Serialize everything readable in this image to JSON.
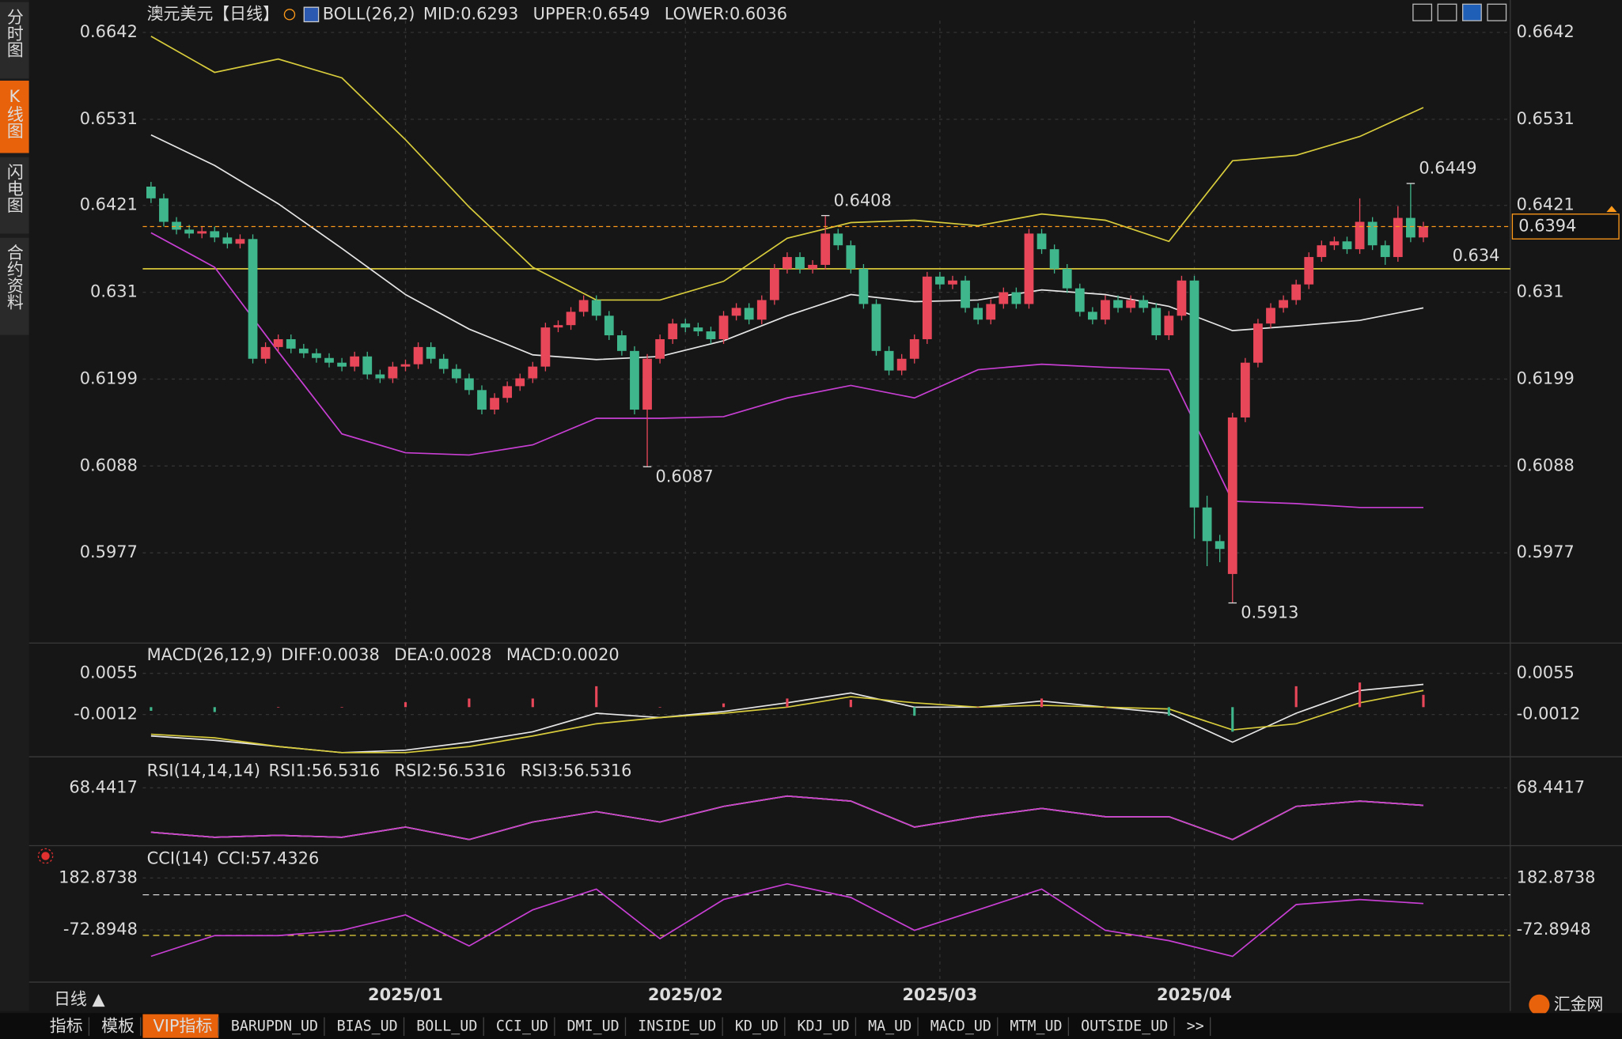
{
  "chart_data": [
    {
      "type": "candlestick",
      "title": "澳元美元",
      "period": "【日线】",
      "indicator": "BOLL(26,2)",
      "up_color": "#e8475a",
      "down_color": "#3fb68b",
      "grid": true,
      "ylim": [
        0.5871,
        0.6657
      ],
      "yticks": [
        0.6642,
        0.6531,
        0.6421,
        0.631,
        0.6199,
        0.6088,
        0.5977
      ],
      "xticks": [
        {
          "value": 20,
          "label": "2025/01"
        },
        {
          "value": 42,
          "label": "2025/02"
        },
        {
          "value": 62,
          "label": "2025/03"
        },
        {
          "value": 82,
          "label": "2025/04"
        }
      ],
      "hline": 0.634,
      "hline_color": "#e6d43c",
      "last_color": "#ff9a1a",
      "ohlc": [
        [
          0.6445,
          0.6451,
          0.6424,
          0.643
        ],
        [
          0.643,
          0.6436,
          0.6394,
          0.64
        ],
        [
          0.64,
          0.6406,
          0.6384,
          0.639
        ],
        [
          0.639,
          0.6396,
          0.6379,
          0.6385
        ],
        [
          0.6385,
          0.6394,
          0.6379,
          0.6388
        ],
        [
          0.6388,
          0.6394,
          0.6374,
          0.638
        ],
        [
          0.638,
          0.6386,
          0.6366,
          0.6372
        ],
        [
          0.6372,
          0.6384,
          0.6366,
          0.6378
        ],
        [
          0.6378,
          0.6384,
          0.6219,
          0.6225
        ],
        [
          0.6225,
          0.6246,
          0.6219,
          0.624
        ],
        [
          0.624,
          0.6256,
          0.6234,
          0.625
        ],
        [
          0.625,
          0.6256,
          0.6232,
          0.6238
        ],
        [
          0.6238,
          0.6244,
          0.6226,
          0.6232
        ],
        [
          0.6232,
          0.6238,
          0.622,
          0.6226
        ],
        [
          0.6226,
          0.6232,
          0.6214,
          0.622
        ],
        [
          0.622,
          0.6226,
          0.6209,
          0.6215
        ],
        [
          0.6215,
          0.6234,
          0.6209,
          0.6228
        ],
        [
          0.6228,
          0.6234,
          0.6199,
          0.6205
        ],
        [
          0.6205,
          0.6211,
          0.6194,
          0.62
        ],
        [
          0.62,
          0.6221,
          0.6194,
          0.6215
        ],
        [
          0.6215,
          0.6224,
          0.6209,
          0.6218
        ],
        [
          0.6218,
          0.6246,
          0.6212,
          0.624
        ],
        [
          0.624,
          0.6246,
          0.6219,
          0.6225
        ],
        [
          0.6225,
          0.6231,
          0.6206,
          0.6212
        ],
        [
          0.6212,
          0.6218,
          0.6194,
          0.62
        ],
        [
          0.62,
          0.6206,
          0.6179,
          0.6185
        ],
        [
          0.6185,
          0.6191,
          0.6154,
          0.616
        ],
        [
          0.616,
          0.6181,
          0.6154,
          0.6175
        ],
        [
          0.6175,
          0.6196,
          0.6169,
          0.619
        ],
        [
          0.619,
          0.6206,
          0.6184,
          0.62
        ],
        [
          0.62,
          0.6221,
          0.6194,
          0.6215
        ],
        [
          0.6215,
          0.6271,
          0.6209,
          0.6265
        ],
        [
          0.6265,
          0.6274,
          0.6259,
          0.6268
        ],
        [
          0.6268,
          0.6291,
          0.6262,
          0.6285
        ],
        [
          0.6285,
          0.6306,
          0.6279,
          0.63
        ],
        [
          0.63,
          0.6306,
          0.6274,
          0.628
        ],
        [
          0.628,
          0.6286,
          0.6249,
          0.6255
        ],
        [
          0.6255,
          0.6261,
          0.6229,
          0.6235
        ],
        [
          0.6235,
          0.6241,
          0.6154,
          0.616
        ],
        [
          0.616,
          0.6231,
          0.6087,
          0.6225
        ],
        [
          0.6225,
          0.6256,
          0.6219,
          0.625
        ],
        [
          0.625,
          0.6276,
          0.6244,
          0.627
        ],
        [
          0.627,
          0.6276,
          0.6259,
          0.6265
        ],
        [
          0.6265,
          0.6271,
          0.6254,
          0.626
        ],
        [
          0.626,
          0.6266,
          0.6244,
          0.625
        ],
        [
          0.625,
          0.6286,
          0.6244,
          0.628
        ],
        [
          0.628,
          0.6296,
          0.6274,
          0.629
        ],
        [
          0.629,
          0.6296,
          0.6269,
          0.6275
        ],
        [
          0.6275,
          0.6306,
          0.6269,
          0.63
        ],
        [
          0.63,
          0.6346,
          0.6294,
          0.634
        ],
        [
          0.634,
          0.6361,
          0.6334,
          0.6355
        ],
        [
          0.6355,
          0.6361,
          0.6334,
          0.634
        ],
        [
          0.634,
          0.6351,
          0.6334,
          0.6345
        ],
        [
          0.6345,
          0.6408,
          0.6339,
          0.6385
        ],
        [
          0.6385,
          0.6391,
          0.6364,
          0.637
        ],
        [
          0.637,
          0.6376,
          0.6334,
          0.634
        ],
        [
          0.634,
          0.6346,
          0.6289,
          0.6295
        ],
        [
          0.6295,
          0.6301,
          0.6229,
          0.6235
        ],
        [
          0.6235,
          0.6241,
          0.6204,
          0.621
        ],
        [
          0.621,
          0.6231,
          0.6204,
          0.6225
        ],
        [
          0.6225,
          0.6256,
          0.6219,
          0.625
        ],
        [
          0.625,
          0.6336,
          0.6244,
          0.633
        ],
        [
          0.633,
          0.6336,
          0.6314,
          0.632
        ],
        [
          0.632,
          0.6331,
          0.6314,
          0.6325
        ],
        [
          0.6325,
          0.6331,
          0.6284,
          0.629
        ],
        [
          0.629,
          0.6296,
          0.6269,
          0.6275
        ],
        [
          0.6275,
          0.6301,
          0.6269,
          0.6295
        ],
        [
          0.6295,
          0.6316,
          0.6289,
          0.631
        ],
        [
          0.631,
          0.6316,
          0.6289,
          0.6295
        ],
        [
          0.6295,
          0.6391,
          0.6289,
          0.6385
        ],
        [
          0.6385,
          0.6391,
          0.6359,
          0.6365
        ],
        [
          0.6365,
          0.6371,
          0.6334,
          0.634
        ],
        [
          0.634,
          0.6346,
          0.6309,
          0.6315
        ],
        [
          0.6315,
          0.6321,
          0.6279,
          0.6285
        ],
        [
          0.6285,
          0.6291,
          0.6269,
          0.6275
        ],
        [
          0.6275,
          0.6306,
          0.6269,
          0.63
        ],
        [
          0.63,
          0.6306,
          0.6284,
          0.629
        ],
        [
          0.629,
          0.6306,
          0.6284,
          0.63
        ],
        [
          0.63,
          0.6306,
          0.6284,
          0.629
        ],
        [
          0.629,
          0.6296,
          0.6249,
          0.6255
        ],
        [
          0.6255,
          0.6286,
          0.6249,
          0.628
        ],
        [
          0.628,
          0.6331,
          0.6274,
          0.6325
        ],
        [
          0.6325,
          0.6331,
          0.5995,
          0.6035
        ],
        [
          0.6035,
          0.605,
          0.596,
          0.5992
        ],
        [
          0.5992,
          0.6,
          0.5965,
          0.5982
        ],
        [
          0.595,
          0.6156,
          0.5913,
          0.615
        ],
        [
          0.615,
          0.6226,
          0.6144,
          0.622
        ],
        [
          0.622,
          0.6276,
          0.6214,
          0.627
        ],
        [
          0.627,
          0.6296,
          0.6264,
          0.629
        ],
        [
          0.629,
          0.6306,
          0.6284,
          0.63
        ],
        [
          0.63,
          0.6326,
          0.6294,
          0.632
        ],
        [
          0.632,
          0.6361,
          0.6314,
          0.6355
        ],
        [
          0.6355,
          0.6376,
          0.6349,
          0.637
        ],
        [
          0.637,
          0.6381,
          0.6364,
          0.6375
        ],
        [
          0.6375,
          0.6381,
          0.6359,
          0.6365
        ],
        [
          0.6365,
          0.643,
          0.6359,
          0.64
        ],
        [
          0.64,
          0.6406,
          0.6364,
          0.637
        ],
        [
          0.637,
          0.6376,
          0.6345,
          0.6355
        ],
        [
          0.6355,
          0.642,
          0.6349,
          0.6405
        ],
        [
          0.6405,
          0.6449,
          0.6374,
          0.638
        ],
        [
          0.638,
          0.64,
          0.6374,
          0.6394
        ]
      ],
      "x": [
        0,
        5,
        10,
        15,
        20,
        25,
        30,
        35,
        40,
        45,
        50,
        55,
        60,
        65,
        70,
        75,
        80,
        85,
        90,
        95,
        100
      ],
      "series": [
        {
          "name": "MID:0.6293",
          "color": "#e6e6e6",
          "values": [
            0.6511,
            0.6472,
            0.6423,
            0.6366,
            0.6307,
            0.6263,
            0.623,
            0.6224,
            0.6228,
            0.6248,
            0.628,
            0.6307,
            0.6298,
            0.63,
            0.6313,
            0.6307,
            0.6292,
            0.6261,
            0.6267,
            0.6274,
            0.629
          ]
        },
        {
          "name": "UPPER:0.6549",
          "color": "#d8cc3c",
          "values": [
            0.6637,
            0.6591,
            0.6608,
            0.6584,
            0.6505,
            0.6419,
            0.6342,
            0.63,
            0.63,
            0.6324,
            0.6379,
            0.6399,
            0.6402,
            0.6395,
            0.641,
            0.6402,
            0.6375,
            0.6478,
            0.6485,
            0.6509,
            0.6546
          ]
        },
        {
          "name": "LOWER:0.6036",
          "color": "#c83fd4",
          "values": [
            0.6386,
            0.6342,
            0.6234,
            0.6129,
            0.6105,
            0.6102,
            0.6115,
            0.6149,
            0.6149,
            0.6151,
            0.6175,
            0.6191,
            0.6175,
            0.6211,
            0.6218,
            0.6214,
            0.6211,
            0.6043,
            0.604,
            0.6035,
            0.6035
          ]
        }
      ]
    },
    {
      "type": "macd",
      "indicator": "MACD(26,12,9)",
      "ylim": [
        -0.0074,
        0.0074
      ],
      "yticks": [
        0.0055,
        -0.0012
      ],
      "grid": true,
      "x": [
        0,
        5,
        10,
        15,
        20,
        25,
        30,
        35,
        40,
        45,
        50,
        55,
        60,
        65,
        70,
        75,
        80,
        85,
        90,
        95,
        100
      ],
      "series": [
        {
          "name": "DIFF:0.0038",
          "color": "#e6e6e6",
          "values": [
            -0.0047,
            -0.0054,
            -0.0064,
            -0.0074,
            -0.007,
            -0.0057,
            -0.004,
            -0.001,
            -0.0017,
            -0.0007,
            0.0007,
            0.0023,
            0,
            0,
            0.001,
            0,
            -0.001,
            -0.0057,
            -0.001,
            0.0027,
            0.0037
          ]
        },
        {
          "name": "DEA:0.0028",
          "color": "#d8cc3c",
          "values": [
            -0.0044,
            -0.005,
            -0.0064,
            -0.0074,
            -0.0074,
            -0.0064,
            -0.0047,
            -0.0027,
            -0.0017,
            -0.001,
            0,
            0.0017,
            0.0007,
            0,
            0.0003,
            0,
            -0.0003,
            -0.0037,
            -0.0027,
            0.0007,
            0.0027
          ]
        },
        {
          "name": "MACD:0.0020",
          "color": "#d03ad6",
          "style": "bar",
          "bar_colors": [
            "#e8475a",
            "#3fb68b"
          ],
          "values": [
            -0.0006,
            -0.0008,
            0,
            0,
            0.0008,
            0.0014,
            0.0014,
            0.0034,
            0,
            0.0006,
            0.0014,
            0.0012,
            -0.0014,
            0,
            0.0014,
            0,
            -0.0014,
            -0.004,
            0.0034,
            0.004,
            0.002
          ]
        }
      ]
    },
    {
      "type": "line",
      "indicator": "RSI(14,14,14)",
      "ylim": [
        30,
        85
      ],
      "yticks": [
        68.4417
      ],
      "grid": true,
      "x": [
        0,
        5,
        10,
        15,
        20,
        25,
        30,
        35,
        40,
        45,
        50,
        55,
        60,
        65,
        70,
        75,
        80,
        85,
        90,
        95,
        100
      ],
      "series": [
        {
          "name": "RSI1:56.5316",
          "color": "#e6e6e6",
          "values": [
            42.2,
            39.2,
            40.4,
            39.2,
            45.3,
            37.9,
            48.3,
            54.4,
            48.3,
            57.5,
            63.6,
            60.6,
            45.3,
            51.4,
            56.3,
            51.4,
            51.4,
            37.9,
            57.5,
            60.6,
            58.1
          ]
        },
        {
          "name": "RSI2:56.5316",
          "color": "#d8cc3c",
          "values": [
            42.2,
            39.2,
            40.4,
            39.2,
            45.3,
            37.9,
            48.3,
            54.4,
            48.3,
            57.5,
            63.6,
            60.6,
            45.3,
            51.4,
            56.3,
            51.4,
            51.4,
            37.9,
            57.5,
            60.6,
            58.1
          ]
        },
        {
          "name": "RSI3:56.5316",
          "color": "#c83fd4",
          "values": [
            42.2,
            39.2,
            40.4,
            39.2,
            45.3,
            37.9,
            48.3,
            54.4,
            48.3,
            57.5,
            63.6,
            60.6,
            45.3,
            51.4,
            56.3,
            51.4,
            51.4,
            37.9,
            57.5,
            60.6,
            58.1
          ]
        }
      ]
    },
    {
      "type": "line",
      "indicator": "CCI(14)",
      "ylim": [
        -330,
        230
      ],
      "yticks": [
        182.8738,
        -72.8948
      ],
      "grid": true,
      "levels": [
        100,
        -100
      ],
      "level_colors": [
        "#d8d8d8",
        "#e6d43c"
      ],
      "x": [
        0,
        5,
        10,
        15,
        20,
        25,
        30,
        35,
        40,
        45,
        50,
        55,
        60,
        65,
        70,
        75,
        80,
        85,
        90,
        95,
        100
      ],
      "series": [
        {
          "name": "CCI:57.4326",
          "color": "#c83fd4",
          "values": [
            -202.7,
            -101,
            -101,
            -75,
            0.9,
            -152,
            26,
            128,
            -116,
            77,
            154,
            87,
            -75,
            26,
            128,
            -75,
            -126,
            -203,
            52,
            77,
            57
          ]
        }
      ]
    }
  ],
  "ui": {
    "sidebar": [
      "分时图",
      "K线图",
      "闪电图",
      "合约资料"
    ],
    "sidebar_active": 1,
    "period": "日线 ▲",
    "brand": "汇金网",
    "tabs": [
      "指标",
      "模板",
      "VIP指标",
      "BARUPDN_UD",
      "BIAS_UD",
      "BOLL_UD",
      "CCI_UD",
      "DMI_UD",
      "INSIDE_UD",
      "KD_UD",
      "KDJ_UD",
      "MA_UD",
      "MACD_UD",
      "MTM_UD",
      "OUTSIDE_UD",
      ">>"
    ],
    "tab_active": 2
  }
}
